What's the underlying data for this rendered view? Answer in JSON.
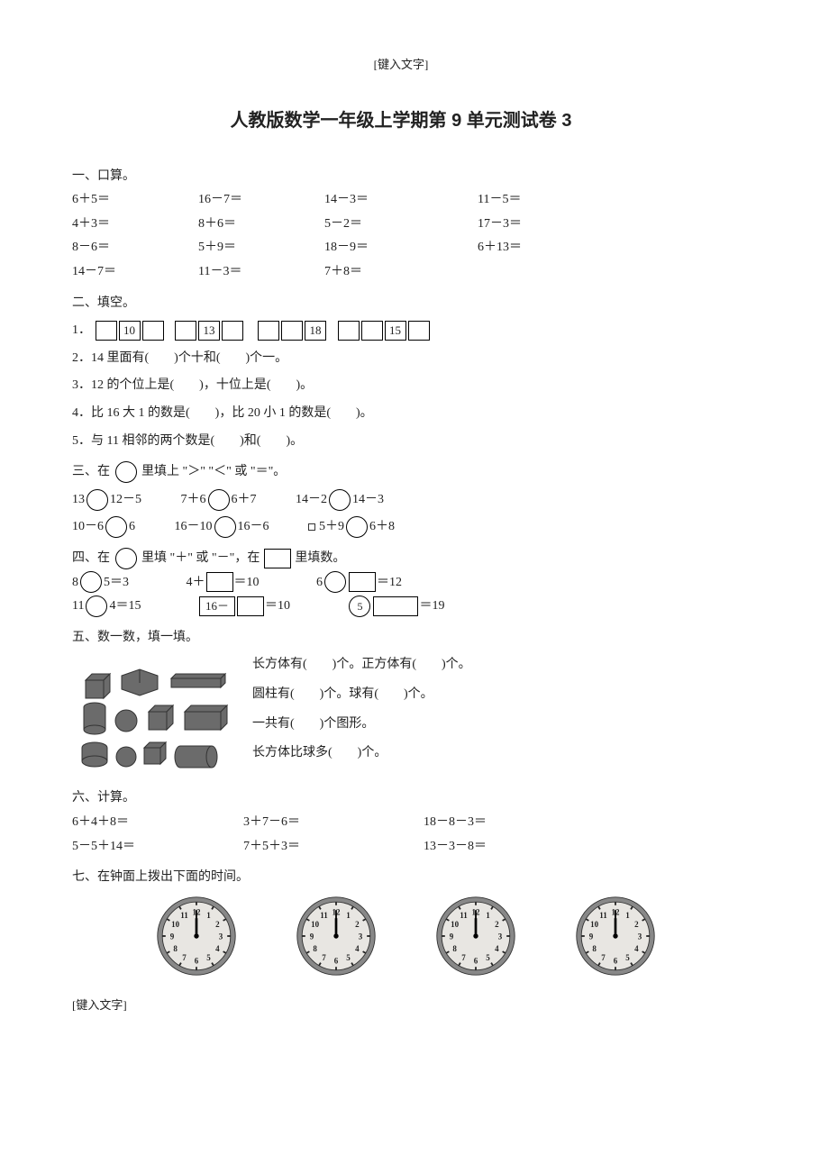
{
  "header_note": "[键入文字]",
  "footer_note": "[键入文字]",
  "title": "人教版数学一年级上学期第 9 单元测试卷 3",
  "s1": {
    "heading": "一、口算。",
    "items": [
      "6＋5＝",
      "16－7＝",
      "14－3＝",
      "11－5＝",
      "4＋3＝",
      "8＋6＝",
      "5－2＝",
      "17－3＝",
      "8－6＝",
      "5＋9＝",
      "18－9＝",
      "6＋13＝",
      "14－7＝",
      "11－3＝",
      "7＋8＝",
      ""
    ]
  },
  "s2": {
    "heading": "二、填空。",
    "q1_label": "1．",
    "q1_boxes": [
      "",
      "10",
      "",
      "",
      "13",
      "",
      "",
      "",
      "18",
      "",
      "",
      "15",
      ""
    ],
    "q2": "2．14 里面有(　　)个十和(　　)个一。",
    "q3": "3．12 的个位上是(　　)，十位上是(　　)。",
    "q4": "4．比 16 大 1 的数是(　　)，比 20 小 1 的数是(　　)。",
    "q5": "5．与 11 相邻的两个数是(　　)和(　　)。"
  },
  "s3": {
    "heading_a": "三、在",
    "heading_b": "里填上 \"＞\" \"＜\" 或 \"＝\"。",
    "row1": [
      {
        "l": "13",
        "r": "12－5"
      },
      {
        "l": "7＋6",
        "r": "6＋7"
      },
      {
        "l": "14－2",
        "r": "14－3"
      }
    ],
    "row2": [
      {
        "l": "10－6",
        "r": "6"
      },
      {
        "l": "16－10",
        "r": "16－6"
      },
      {
        "l": "5＋9",
        "r": "6＋8"
      }
    ],
    "marker": "■"
  },
  "s4": {
    "heading_a": "四、在",
    "heading_b": "里填 \"＋\" 或 \"－\"，在",
    "heading_c": "里填数。",
    "row1": [
      {
        "pre": "8",
        "mid": "5＝3",
        "type": "circle"
      },
      {
        "pre": "4＋",
        "mid": "＝10",
        "type": "box"
      },
      {
        "pre": "6",
        "mid": "＝12",
        "type": "circle-box"
      }
    ],
    "row2": [
      {
        "pre": "11",
        "mid": "4＝15",
        "type": "circle"
      },
      {
        "pre": "16－",
        "mid": "＝10",
        "type": "box-pre",
        "boxval": "16－"
      },
      {
        "pre": "",
        "mid": "＝19",
        "type": "circle-num-box",
        "num": "5"
      }
    ]
  },
  "s5": {
    "heading": "五、数一数，填一填。",
    "lines": [
      "长方体有(　　)个。正方体有(　　)个。",
      "圆柱有(　　)个。球有(　　)个。",
      "一共有(　　)个图形。",
      "长方体比球多(　　)个。"
    ]
  },
  "s6": {
    "heading": "六、计算。",
    "items": [
      "6＋4＋8＝",
      "3＋7－6＝",
      "18－8－3＝",
      "5－5＋14＝",
      "7＋5＋3＝",
      "13－3－8＝"
    ]
  },
  "s7": {
    "heading": "七、在钟面上拨出下面的时间。"
  },
  "clock": {
    "face_fill": "#e8e6e2",
    "rim": "#555",
    "tick": "#222"
  }
}
